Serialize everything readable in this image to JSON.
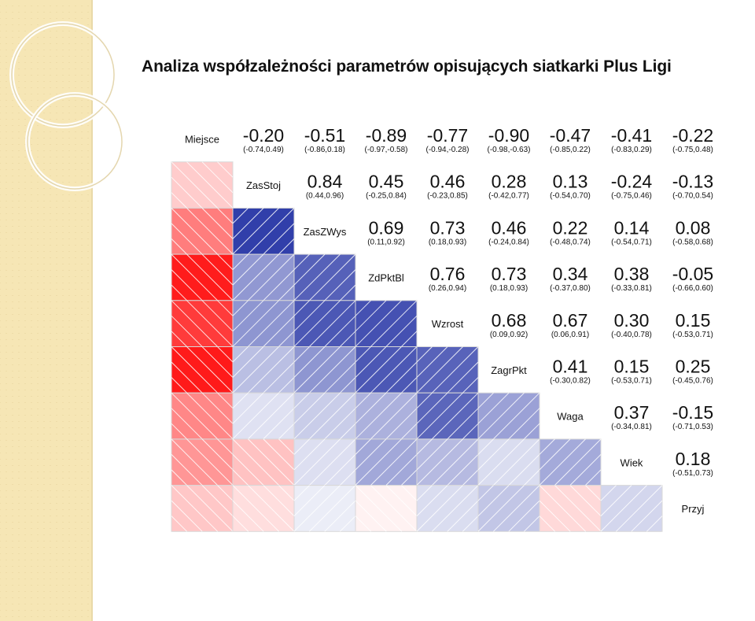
{
  "title": "Analiza współzależności parametrów opisujących siatkarki Plus Ligi",
  "colors": {
    "positive": "#0a1a9a",
    "negative": "#ff0000",
    "neutral": "#ffffff",
    "grid": "#d8d8d8",
    "hatch": "#ffffff",
    "text": "#111111",
    "background_strip": "#f6e6b5"
  },
  "chart_data": {
    "type": "heatmap",
    "title": "Analiza współzależności parametrów opisujących siatkarki Plus Ligi",
    "variables": [
      "Miejsce",
      "ZasStoj",
      "ZasZWys",
      "ZdPktBl",
      "Wzrost",
      "ZagrPkt",
      "Waga",
      "Wiek",
      "Przyj"
    ],
    "upper_panel": "correlation value with confidence interval",
    "lower_panel": "shaded square, blue = positive, red = negative",
    "pairs": [
      {
        "row": 0,
        "col": 1,
        "r": -0.2,
        "r_text": "-0.20",
        "ci": "(-0.74,0.49)"
      },
      {
        "row": 0,
        "col": 2,
        "r": -0.51,
        "r_text": "-0.51",
        "ci": "(-0.86,0.18)"
      },
      {
        "row": 0,
        "col": 3,
        "r": -0.89,
        "r_text": "-0.89",
        "ci": "(-0.97,-0.58)"
      },
      {
        "row": 0,
        "col": 4,
        "r": -0.77,
        "r_text": "-0.77",
        "ci": "(-0.94,-0.28)"
      },
      {
        "row": 0,
        "col": 5,
        "r": -0.9,
        "r_text": "-0.90",
        "ci": "(-0.98,-0.63)"
      },
      {
        "row": 0,
        "col": 6,
        "r": -0.47,
        "r_text": "-0.47",
        "ci": "(-0.85,0.22)"
      },
      {
        "row": 0,
        "col": 7,
        "r": -0.41,
        "r_text": "-0.41",
        "ci": "(-0.83,0.29)"
      },
      {
        "row": 0,
        "col": 8,
        "r": -0.22,
        "r_text": "-0.22",
        "ci": "(-0.75,0.48)"
      },
      {
        "row": 1,
        "col": 2,
        "r": 0.84,
        "r_text": "0.84",
        "ci": "(0.44,0.96)"
      },
      {
        "row": 1,
        "col": 3,
        "r": 0.45,
        "r_text": "0.45",
        "ci": "(-0.25,0.84)"
      },
      {
        "row": 1,
        "col": 4,
        "r": 0.46,
        "r_text": "0.46",
        "ci": "(-0.23,0.85)"
      },
      {
        "row": 1,
        "col": 5,
        "r": 0.28,
        "r_text": "0.28",
        "ci": "(-0.42,0.77)"
      },
      {
        "row": 1,
        "col": 6,
        "r": 0.13,
        "r_text": "0.13",
        "ci": "(-0.54,0.70)"
      },
      {
        "row": 1,
        "col": 7,
        "r": -0.24,
        "r_text": "-0.24",
        "ci": "(-0.75,0.46)"
      },
      {
        "row": 1,
        "col": 8,
        "r": -0.13,
        "r_text": "-0.13",
        "ci": "(-0.70,0.54)"
      },
      {
        "row": 2,
        "col": 3,
        "r": 0.69,
        "r_text": "0.69",
        "ci": "(0.11,0.92)"
      },
      {
        "row": 2,
        "col": 4,
        "r": 0.73,
        "r_text": "0.73",
        "ci": "(0.18,0.93)"
      },
      {
        "row": 2,
        "col": 5,
        "r": 0.46,
        "r_text": "0.46",
        "ci": "(-0.24,0.84)"
      },
      {
        "row": 2,
        "col": 6,
        "r": 0.22,
        "r_text": "0.22",
        "ci": "(-0.48,0.74)"
      },
      {
        "row": 2,
        "col": 7,
        "r": 0.14,
        "r_text": "0.14",
        "ci": "(-0.54,0.71)"
      },
      {
        "row": 2,
        "col": 8,
        "r": 0.08,
        "r_text": "0.08",
        "ci": "(-0.58,0.68)"
      },
      {
        "row": 3,
        "col": 4,
        "r": 0.76,
        "r_text": "0.76",
        "ci": "(0.26,0.94)"
      },
      {
        "row": 3,
        "col": 5,
        "r": 0.73,
        "r_text": "0.73",
        "ci": "(0.18,0.93)"
      },
      {
        "row": 3,
        "col": 6,
        "r": 0.34,
        "r_text": "0.34",
        "ci": "(-0.37,0.80)"
      },
      {
        "row": 3,
        "col": 7,
        "r": 0.38,
        "r_text": "0.38",
        "ci": "(-0.33,0.81)"
      },
      {
        "row": 3,
        "col": 8,
        "r": -0.05,
        "r_text": "-0.05",
        "ci": "(-0.66,0.60)"
      },
      {
        "row": 4,
        "col": 5,
        "r": 0.68,
        "r_text": "0.68",
        "ci": "(0.09,0.92)"
      },
      {
        "row": 4,
        "col": 6,
        "r": 0.67,
        "r_text": "0.67",
        "ci": "(0.06,0.91)"
      },
      {
        "row": 4,
        "col": 7,
        "r": 0.3,
        "r_text": "0.30",
        "ci": "(-0.40,0.78)"
      },
      {
        "row": 4,
        "col": 8,
        "r": 0.15,
        "r_text": "0.15",
        "ci": "(-0.53,0.71)"
      },
      {
        "row": 5,
        "col": 6,
        "r": 0.41,
        "r_text": "0.41",
        "ci": "(-0.30,0.82)"
      },
      {
        "row": 5,
        "col": 7,
        "r": 0.15,
        "r_text": "0.15",
        "ci": "(-0.53,0.71)"
      },
      {
        "row": 5,
        "col": 8,
        "r": 0.25,
        "r_text": "0.25",
        "ci": "(-0.45,0.76)"
      },
      {
        "row": 6,
        "col": 7,
        "r": 0.37,
        "r_text": "0.37",
        "ci": "(-0.34,0.81)"
      },
      {
        "row": 6,
        "col": 8,
        "r": -0.15,
        "r_text": "-0.15",
        "ci": "(-0.71,0.53)"
      },
      {
        "row": 7,
        "col": 8,
        "r": 0.18,
        "r_text": "0.18",
        "ci": "(-0.51,0.73)"
      }
    ]
  }
}
